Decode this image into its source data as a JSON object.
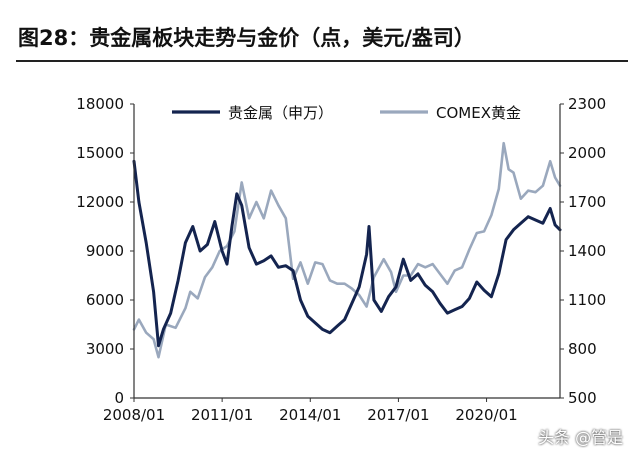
{
  "chart_data": {
    "type": "line",
    "title": "图28：贵金属板块走势与金价（点，美元/盎司）",
    "x_tick_labels": [
      "2008/01",
      "2011/01",
      "2014/01",
      "2017/01",
      "2020/01"
    ],
    "x_range": [
      "2008-01",
      "2022-07"
    ],
    "y_left": {
      "range": [
        0,
        18000
      ],
      "ticks": [
        "0",
        "3000",
        "6000",
        "9000",
        "12000",
        "15000",
        "18000"
      ]
    },
    "y_right": {
      "range": [
        500,
        2300
      ],
      "ticks": [
        "500",
        "800",
        "1100",
        "1400",
        "1700",
        "2000",
        "2300"
      ]
    },
    "legend_position": "top",
    "grid": false,
    "series": [
      {
        "name": "贵金属（申万）",
        "axis": "left",
        "color": "#14244f",
        "points": [
          [
            "2008-01",
            14500
          ],
          [
            "2008-03",
            12000
          ],
          [
            "2008-06",
            9500
          ],
          [
            "2008-09",
            6500
          ],
          [
            "2008-11",
            3200
          ],
          [
            "2009-01",
            4200
          ],
          [
            "2009-04",
            5200
          ],
          [
            "2009-07",
            7200
          ],
          [
            "2009-10",
            9500
          ],
          [
            "2010-01",
            10500
          ],
          [
            "2010-04",
            9000
          ],
          [
            "2010-07",
            9400
          ],
          [
            "2010-10",
            10800
          ],
          [
            "2011-01",
            9000
          ],
          [
            "2011-03",
            8200
          ],
          [
            "2011-05",
            10500
          ],
          [
            "2011-07",
            12500
          ],
          [
            "2011-09",
            11800
          ],
          [
            "2011-12",
            9200
          ],
          [
            "2012-03",
            8200
          ],
          [
            "2012-06",
            8400
          ],
          [
            "2012-09",
            8700
          ],
          [
            "2012-12",
            8000
          ],
          [
            "2013-03",
            8100
          ],
          [
            "2013-06",
            7800
          ],
          [
            "2013-09",
            6000
          ],
          [
            "2013-12",
            5000
          ],
          [
            "2014-03",
            4600
          ],
          [
            "2014-06",
            4200
          ],
          [
            "2014-09",
            4000
          ],
          [
            "2014-12",
            4400
          ],
          [
            "2015-03",
            4800
          ],
          [
            "2015-06",
            5800
          ],
          [
            "2015-09",
            6800
          ],
          [
            "2015-12",
            8800
          ],
          [
            "2016-01",
            10500
          ],
          [
            "2016-03",
            6000
          ],
          [
            "2016-06",
            5300
          ],
          [
            "2016-09",
            6200
          ],
          [
            "2016-12",
            6800
          ],
          [
            "2017-03",
            8500
          ],
          [
            "2017-06",
            7200
          ],
          [
            "2017-09",
            7600
          ],
          [
            "2017-12",
            6900
          ],
          [
            "2018-03",
            6500
          ],
          [
            "2018-06",
            5800
          ],
          [
            "2018-09",
            5200
          ],
          [
            "2018-12",
            5400
          ],
          [
            "2019-03",
            5600
          ],
          [
            "2019-06",
            6100
          ],
          [
            "2019-09",
            7100
          ],
          [
            "2019-12",
            6600
          ],
          [
            "2020-03",
            6200
          ],
          [
            "2020-06",
            7600
          ],
          [
            "2020-09",
            9700
          ],
          [
            "2020-12",
            10300
          ],
          [
            "2021-03",
            10700
          ],
          [
            "2021-06",
            11100
          ],
          [
            "2021-09",
            10900
          ],
          [
            "2021-12",
            10700
          ],
          [
            "2022-03",
            11600
          ],
          [
            "2022-05",
            10600
          ],
          [
            "2022-07",
            10300
          ]
        ]
      },
      {
        "name": "COMEX黄金",
        "axis": "right",
        "color": "#9aa8bd",
        "points": [
          [
            "2008-01",
            920
          ],
          [
            "2008-03",
            980
          ],
          [
            "2008-06",
            900
          ],
          [
            "2008-09",
            860
          ],
          [
            "2008-11",
            750
          ],
          [
            "2009-02",
            950
          ],
          [
            "2009-06",
            930
          ],
          [
            "2009-10",
            1050
          ],
          [
            "2009-12",
            1150
          ],
          [
            "2010-03",
            1110
          ],
          [
            "2010-06",
            1240
          ],
          [
            "2010-09",
            1300
          ],
          [
            "2010-12",
            1400
          ],
          [
            "2011-03",
            1430
          ],
          [
            "2011-06",
            1520
          ],
          [
            "2011-09",
            1820
          ],
          [
            "2011-12",
            1600
          ],
          [
            "2012-03",
            1700
          ],
          [
            "2012-06",
            1600
          ],
          [
            "2012-09",
            1770
          ],
          [
            "2012-12",
            1680
          ],
          [
            "2013-03",
            1600
          ],
          [
            "2013-06",
            1230
          ],
          [
            "2013-09",
            1330
          ],
          [
            "2013-12",
            1200
          ],
          [
            "2014-03",
            1330
          ],
          [
            "2014-06",
            1320
          ],
          [
            "2014-09",
            1220
          ],
          [
            "2014-12",
            1200
          ],
          [
            "2015-03",
            1200
          ],
          [
            "2015-06",
            1170
          ],
          [
            "2015-09",
            1130
          ],
          [
            "2015-12",
            1060
          ],
          [
            "2016-03",
            1240
          ],
          [
            "2016-07",
            1350
          ],
          [
            "2016-10",
            1270
          ],
          [
            "2016-12",
            1150
          ],
          [
            "2017-03",
            1250
          ],
          [
            "2017-06",
            1250
          ],
          [
            "2017-09",
            1320
          ],
          [
            "2017-12",
            1300
          ],
          [
            "2018-03",
            1320
          ],
          [
            "2018-06",
            1260
          ],
          [
            "2018-09",
            1200
          ],
          [
            "2018-12",
            1280
          ],
          [
            "2019-03",
            1300
          ],
          [
            "2019-06",
            1410
          ],
          [
            "2019-09",
            1510
          ],
          [
            "2019-12",
            1520
          ],
          [
            "2020-03",
            1620
          ],
          [
            "2020-06",
            1780
          ],
          [
            "2020-08",
            2060
          ],
          [
            "2020-10",
            1900
          ],
          [
            "2020-12",
            1880
          ],
          [
            "2021-03",
            1720
          ],
          [
            "2021-06",
            1770
          ],
          [
            "2021-09",
            1760
          ],
          [
            "2021-12",
            1800
          ],
          [
            "2022-03",
            1950
          ],
          [
            "2022-05",
            1850
          ],
          [
            "2022-07",
            1800
          ]
        ]
      }
    ]
  },
  "watermark": "头条 @管是"
}
